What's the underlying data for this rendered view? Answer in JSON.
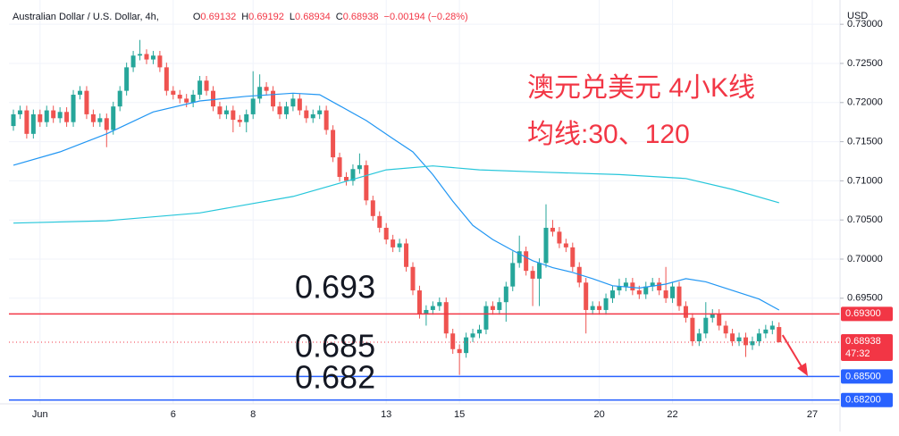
{
  "chart_data": {
    "type": "candlestick",
    "header": {
      "symbol": "Australian Dollar / U.S. Dollar, 4h,",
      "items": [
        {
          "key": "O",
          "value": "0.69132"
        },
        {
          "key": "H",
          "value": "0.69192"
        },
        {
          "key": "L",
          "value": "0.68934"
        },
        {
          "key": "C",
          "value": "0.68938"
        }
      ],
      "change": "−0.00194 (−0.28%)"
    },
    "currency": "USD",
    "annotations": [
      "澳元兑美元 4小K线",
      "均线:30、120"
    ],
    "up_color": "#26a69a",
    "down_color": "#ef5350",
    "open": [
      0.717,
      0.7185,
      0.719,
      0.716,
      0.7185,
      0.7175,
      0.719,
      0.718,
      0.7188,
      0.7175,
      0.721,
      0.7215,
      0.7185,
      0.7175,
      0.718,
      0.7165,
      0.7195,
      0.7215,
      0.7245,
      0.726,
      0.7262,
      0.7255,
      0.726,
      0.7245,
      0.7215,
      0.721,
      0.7205,
      0.72,
      0.721,
      0.7228,
      0.7215,
      0.7195,
      0.7185,
      0.719,
      0.7178,
      0.7175,
      0.7185,
      0.7205,
      0.722,
      0.7215,
      0.7195,
      0.7185,
      0.7195,
      0.7205,
      0.719,
      0.718,
      0.7185,
      0.719,
      0.7165,
      0.713,
      0.7105,
      0.71,
      0.7115,
      0.712,
      0.7075,
      0.7055,
      0.704,
      0.7025,
      0.7015,
      0.702,
      0.699,
      0.696,
      0.693,
      0.6935,
      0.694,
      0.6945,
      0.6905,
      0.6885,
      0.688,
      0.69,
      0.6905,
      0.691,
      0.694,
      0.6935,
      0.6945,
      0.6965,
      0.6995,
      0.701,
      0.6985,
      0.6975,
      0.6995,
      0.704,
      0.7035,
      0.702,
      0.7015,
      0.699,
      0.697,
      0.6935,
      0.694,
      0.6935,
      0.695,
      0.696,
      0.6965,
      0.697,
      0.696,
      0.6955,
      0.6965,
      0.697,
      0.696,
      0.695,
      0.6965,
      0.694,
      0.6925,
      0.6895,
      0.6905,
      0.6925,
      0.693,
      0.6915,
      0.6905,
      0.6895,
      0.69,
      0.689,
      0.6895,
      0.6905,
      0.691,
      0.69132
    ],
    "high": [
      0.7191,
      0.7196,
      0.7196,
      0.7191,
      0.7191,
      0.7196,
      0.7196,
      0.7194,
      0.7194,
      0.7216,
      0.7221,
      0.7221,
      0.7191,
      0.7186,
      0.7186,
      0.7201,
      0.7221,
      0.7251,
      0.7266,
      0.728,
      0.7268,
      0.7266,
      0.7266,
      0.7251,
      0.7221,
      0.7216,
      0.7211,
      0.7216,
      0.7234,
      0.7234,
      0.7221,
      0.7201,
      0.7196,
      0.7196,
      0.7184,
      0.7191,
      0.724,
      0.7236,
      0.7226,
      0.7221,
      0.7201,
      0.7201,
      0.7211,
      0.7211,
      0.7196,
      0.7191,
      0.7196,
      0.7196,
      0.7171,
      0.7136,
      0.7111,
      0.7121,
      0.7135,
      0.7126,
      0.7081,
      0.7061,
      0.7046,
      0.7031,
      0.7026,
      0.7026,
      0.6996,
      0.6966,
      0.6941,
      0.6946,
      0.6951,
      0.6951,
      0.6911,
      0.6891,
      0.6906,
      0.6911,
      0.6916,
      0.6946,
      0.6946,
      0.6951,
      0.6971,
      0.701,
      0.703,
      0.7016,
      0.6991,
      0.7001,
      0.707,
      0.705,
      0.7041,
      0.7026,
      0.7021,
      0.6996,
      0.6976,
      0.6946,
      0.6946,
      0.6956,
      0.6966,
      0.6975,
      0.6976,
      0.6976,
      0.6966,
      0.6971,
      0.6976,
      0.6976,
      0.699,
      0.6971,
      0.6971,
      0.6946,
      0.6931,
      0.6911,
      0.6945,
      0.6936,
      0.6936,
      0.6921,
      0.6911,
      0.6906,
      0.6906,
      0.6901,
      0.6911,
      0.6916,
      0.6921,
      0.69192
    ],
    "low": [
      0.7164,
      0.7179,
      0.7154,
      0.7154,
      0.7169,
      0.7169,
      0.7174,
      0.7174,
      0.7169,
      0.7169,
      0.7204,
      0.7179,
      0.7169,
      0.7169,
      0.7143,
      0.7159,
      0.7189,
      0.7209,
      0.7239,
      0.7254,
      0.7249,
      0.7249,
      0.7239,
      0.7209,
      0.7204,
      0.7199,
      0.7194,
      0.7194,
      0.7204,
      0.7209,
      0.7189,
      0.7179,
      0.7179,
      0.7162,
      0.7169,
      0.7162,
      0.7179,
      0.7199,
      0.7209,
      0.7189,
      0.7179,
      0.7179,
      0.7189,
      0.7184,
      0.7174,
      0.7174,
      0.7179,
      0.7159,
      0.7124,
      0.7099,
      0.7094,
      0.7094,
      0.7109,
      0.7069,
      0.7049,
      0.7034,
      0.7019,
      0.7009,
      0.7009,
      0.6984,
      0.6954,
      0.6924,
      0.6915,
      0.6929,
      0.6934,
      0.6899,
      0.6879,
      0.6852,
      0.6874,
      0.6894,
      0.6899,
      0.6904,
      0.6929,
      0.6929,
      0.692,
      0.6959,
      0.6989,
      0.6979,
      0.694,
      0.694,
      0.6989,
      0.7029,
      0.7014,
      0.7009,
      0.6984,
      0.6964,
      0.6905,
      0.6929,
      0.6929,
      0.6929,
      0.6944,
      0.6954,
      0.6959,
      0.6954,
      0.6949,
      0.6949,
      0.6959,
      0.6954,
      0.6944,
      0.6944,
      0.6934,
      0.6919,
      0.6889,
      0.6889,
      0.6899,
      0.6919,
      0.6909,
      0.6899,
      0.6889,
      0.6889,
      0.6875,
      0.6884,
      0.6889,
      0.6899,
      0.6904,
      0.68934
    ],
    "close": [
      0.7185,
      0.719,
      0.716,
      0.7185,
      0.7175,
      0.719,
      0.718,
      0.7188,
      0.7175,
      0.721,
      0.7215,
      0.7185,
      0.7175,
      0.718,
      0.7165,
      0.7195,
      0.7215,
      0.7245,
      0.726,
      0.7262,
      0.7255,
      0.726,
      0.7245,
      0.7215,
      0.721,
      0.7205,
      0.72,
      0.721,
      0.7228,
      0.7215,
      0.7195,
      0.7185,
      0.719,
      0.7178,
      0.7175,
      0.7185,
      0.7205,
      0.722,
      0.7215,
      0.7195,
      0.7185,
      0.7195,
      0.7205,
      0.719,
      0.718,
      0.7185,
      0.719,
      0.7165,
      0.713,
      0.7105,
      0.71,
      0.7115,
      0.712,
      0.7075,
      0.7055,
      0.704,
      0.7025,
      0.7015,
      0.702,
      0.699,
      0.696,
      0.693,
      0.6935,
      0.694,
      0.6945,
      0.6905,
      0.6885,
      0.688,
      0.69,
      0.6905,
      0.691,
      0.694,
      0.6935,
      0.6945,
      0.6965,
      0.6995,
      0.701,
      0.6985,
      0.6975,
      0.6995,
      0.704,
      0.7035,
      0.702,
      0.7015,
      0.699,
      0.697,
      0.6935,
      0.694,
      0.6935,
      0.695,
      0.696,
      0.6965,
      0.697,
      0.696,
      0.6955,
      0.6965,
      0.697,
      0.696,
      0.695,
      0.6965,
      0.694,
      0.6925,
      0.6895,
      0.6905,
      0.6925,
      0.693,
      0.6915,
      0.6905,
      0.6895,
      0.69,
      0.689,
      0.6895,
      0.6905,
      0.691,
      0.6915,
      0.68938
    ],
    "series": [
      {
        "color": "#2196f3",
        "x": [
          0,
          7,
          14,
          21,
          28,
          35,
          42,
          46,
          49,
          53,
          57,
          60,
          63,
          66,
          69,
          72,
          75,
          78,
          81,
          84,
          87,
          90,
          94,
          98,
          101,
          104,
          108,
          112,
          115
        ],
        "values": [
          0.712,
          0.7137,
          0.716,
          0.7188,
          0.7202,
          0.7208,
          0.7212,
          0.721,
          0.7196,
          0.7177,
          0.7154,
          0.7137,
          0.7108,
          0.7074,
          0.7043,
          0.7025,
          0.7011,
          0.6998,
          0.6989,
          0.6983,
          0.6975,
          0.6966,
          0.6963,
          0.6968,
          0.6975,
          0.6971,
          0.696,
          0.6949,
          0.6935
        ]
      },
      {
        "color": "#26c6da",
        "x": [
          0,
          14,
          28,
          42,
          56,
          63,
          70,
          80,
          91,
          101,
          108,
          115
        ],
        "values": [
          0.7046,
          0.7049,
          0.7059,
          0.708,
          0.7114,
          0.7119,
          0.7114,
          0.7111,
          0.7108,
          0.7103,
          0.7089,
          0.7072
        ]
      }
    ],
    "levels": [
      {
        "value": 0.693,
        "label": "0.693",
        "axis_label": "0.69300",
        "color": "#f23645"
      },
      {
        "value": 0.685,
        "label": "0.685",
        "axis_label": "0.68500",
        "color": "#2962ff"
      },
      {
        "value": 0.682,
        "label": "0.682",
        "axis_label": "0.68200",
        "color": "#2962ff"
      }
    ],
    "last_price": {
      "value": 0.68938,
      "label": "0.68938",
      "countdown": "47:32",
      "color": "#f23645"
    },
    "ylim": [
      0.68151,
      0.73196
    ],
    "yticks": [
      {
        "value": 0.695,
        "label": "0.69500"
      },
      {
        "value": 0.7,
        "label": "0.70000"
      },
      {
        "value": 0.705,
        "label": "0.70500"
      },
      {
        "value": 0.71,
        "label": "0.71000"
      },
      {
        "value": 0.715,
        "label": "0.71500"
      },
      {
        "value": 0.72,
        "label": "0.72000"
      },
      {
        "value": 0.725,
        "label": "0.72500"
      },
      {
        "value": 0.73,
        "label": "0.73000"
      }
    ],
    "xlim": [
      -0.67,
      124.16
    ],
    "xticks": [
      {
        "value": 4,
        "label": "Jun"
      },
      {
        "value": 24,
        "label": "6"
      },
      {
        "value": 36,
        "label": "8"
      },
      {
        "value": 56,
        "label": "13"
      },
      {
        "value": 67,
        "label": "15"
      },
      {
        "value": 88,
        "label": "20"
      },
      {
        "value": 99,
        "label": "22"
      },
      {
        "value": 120,
        "label": "27"
      }
    ],
    "grid": true
  }
}
